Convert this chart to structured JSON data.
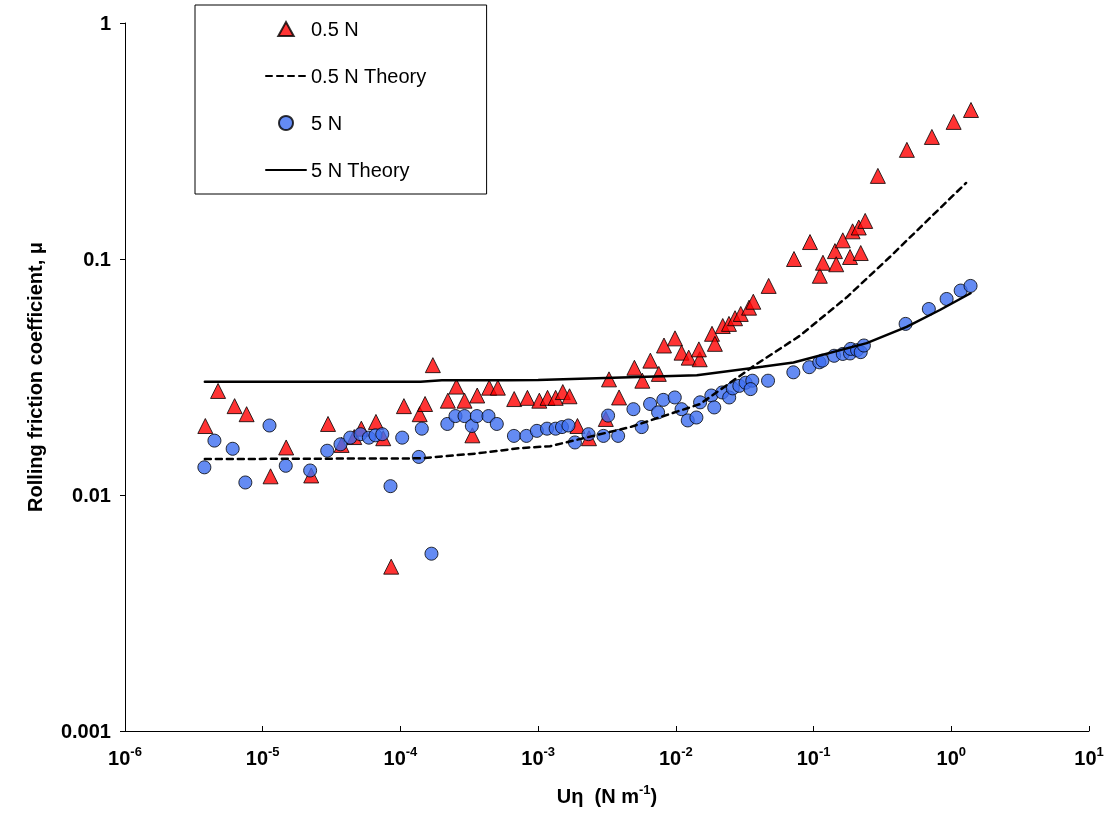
{
  "chart_data": {
    "type": "scatter",
    "xlabel": "Uη  (N m$^{-1}$)",
    "ylabel": "Rolling friction coefficient, μ",
    "log": "xy",
    "grid": false,
    "legend": "top left",
    "xlim": [
      1e-06,
      10
    ],
    "ylim": [
      0.001,
      1
    ],
    "xticks": [
      {
        "value": 1e-06,
        "label": "10$^{-6}$"
      },
      {
        "value": 1e-05,
        "label": "10$^{-5}$"
      },
      {
        "value": 0.0001,
        "label": "10$^{-4}$"
      },
      {
        "value": 0.001,
        "label": "10$^{-3}$"
      },
      {
        "value": 0.01,
        "label": "10$^{-2}$"
      },
      {
        "value": 0.1,
        "label": "10$^{-1}$"
      },
      {
        "value": 1,
        "label": "10$^{0}$"
      },
      {
        "value": 10,
        "label": "10$^{1}$"
      }
    ],
    "yticks": [
      0.001,
      0.01,
      0.1,
      1
    ],
    "series": [
      {
        "name": "0.5 N",
        "marker": "triangle",
        "color": "#ff0000",
        "x": [
          3.83e-06,
          4.74e-06,
          6.25e-06,
          7.64e-06,
          1.14e-05,
          1.48e-05,
          2.25e-05,
          2.98e-05,
          3.74e-05,
          4.62e-05,
          5.2e-05,
          6.64e-05,
          7.5e-05,
          8.57e-05,
          0.000106,
          0.000138,
          0.000151,
          0.000172,
          0.000221,
          0.000255,
          0.000292,
          0.000333,
          0.000361,
          0.000441,
          0.00051,
          0.00067,
          0.000836,
          0.00102,
          0.00117,
          0.00134,
          0.00151,
          0.00169,
          0.00193,
          0.00234,
          0.0031,
          0.00327,
          0.00387,
          0.005,
          0.00571,
          0.00653,
          0.00752,
          0.0082,
          0.00986,
          0.011,
          0.0124,
          0.0149,
          0.0147,
          0.0183,
          0.0192,
          0.0219,
          0.0243,
          0.0269,
          0.0296,
          0.034,
          0.0365,
          0.0472,
          0.0721,
          0.0942,
          0.111,
          0.117,
          0.143,
          0.146,
          0.163,
          0.184,
          0.192,
          0.213,
          0.22,
          0.237,
          0.293,
          0.476,
          0.723,
          1.04,
          1.39
        ],
        "values": [
          0.0196,
          0.0276,
          0.0238,
          0.022,
          0.012,
          0.0159,
          0.0121,
          0.02,
          0.0163,
          0.0176,
          0.0191,
          0.0204,
          0.0174,
          0.00497,
          0.0238,
          0.022,
          0.0243,
          0.0355,
          0.0251,
          0.0288,
          0.0251,
          0.0179,
          0.0264,
          0.0285,
          0.0285,
          0.0255,
          0.0258,
          0.0251,
          0.0258,
          0.0258,
          0.0273,
          0.0262,
          0.0196,
          0.0174,
          0.021,
          0.0309,
          0.0259,
          0.0346,
          0.0305,
          0.0371,
          0.0326,
          0.043,
          0.0461,
          0.0401,
          0.0382,
          0.0376,
          0.0414,
          0.0482,
          0.0437,
          0.052,
          0.0531,
          0.0561,
          0.0585,
          0.0622,
          0.0659,
          0.0769,
          0.1,
          0.118,
          0.0849,
          0.0964,
          0.108,
          0.095,
          0.12,
          0.102,
          0.131,
          0.136,
          0.106,
          0.145,
          0.225,
          0.29,
          0.329,
          0.381,
          0.428
        ]
      },
      {
        "name": "0.5 N Theory",
        "type": "line",
        "marker": "none",
        "line_style": "dashed",
        "color": "#000000",
        "x": [
          3.8e-06,
          0.00014,
          0.000359,
          0.00074,
          0.00122,
          0.00466,
          0.015,
          0.0386,
          0.0796,
          0.174,
          0.358,
          0.74,
          1.28
        ],
        "values": [
          0.0142,
          0.0143,
          0.015,
          0.0158,
          0.0161,
          0.0194,
          0.0243,
          0.0359,
          0.0473,
          0.0688,
          0.102,
          0.154,
          0.21
        ]
      },
      {
        "name": "5 N",
        "marker": "circle",
        "color": "#3d6ef0",
        "x": [
          3.77e-06,
          4.46e-06,
          6.05e-06,
          7.48e-06,
          1.12e-05,
          1.47e-05,
          2.21e-05,
          2.94e-05,
          3.67e-05,
          4.32e-05,
          5.13e-05,
          5.9e-05,
          6.59e-05,
          7.38e-05,
          8.47e-05,
          0.000103,
          0.000136,
          0.000143,
          0.000168,
          0.000219,
          0.000251,
          0.000292,
          0.00033,
          0.000359,
          0.000436,
          0.000501,
          0.000667,
          0.000822,
          0.000979,
          0.00116,
          0.00134,
          0.00149,
          0.00166,
          0.00185,
          0.00232,
          0.00298,
          0.00322,
          0.00381,
          0.00492,
          0.00565,
          0.0065,
          0.00743,
          0.00811,
          0.00982,
          0.011,
          0.0122,
          0.0141,
          0.015,
          0.0181,
          0.019,
          0.0217,
          0.0244,
          0.0259,
          0.0289,
          0.0321,
          0.0359,
          0.0349,
          0.0467,
          0.0713,
          0.0931,
          0.11,
          0.116,
          0.141,
          0.163,
          0.184,
          0.186,
          0.207,
          0.22,
          0.232,
          0.466,
          0.687,
          0.925,
          1.17,
          1.38
        ],
        "values": [
          0.0131,
          0.017,
          0.0157,
          0.0113,
          0.0197,
          0.0133,
          0.0127,
          0.0154,
          0.0164,
          0.0175,
          0.0181,
          0.0175,
          0.0179,
          0.0181,
          0.0109,
          0.0175,
          0.0145,
          0.0191,
          0.00564,
          0.02,
          0.0216,
          0.0216,
          0.0196,
          0.0216,
          0.0216,
          0.02,
          0.0178,
          0.0178,
          0.0187,
          0.0191,
          0.0191,
          0.0194,
          0.0197,
          0.0167,
          0.0181,
          0.0178,
          0.0217,
          0.0178,
          0.0231,
          0.0194,
          0.0243,
          0.0224,
          0.0253,
          0.0259,
          0.0231,
          0.0207,
          0.0213,
          0.0247,
          0.0264,
          0.0235,
          0.0272,
          0.0259,
          0.0283,
          0.029,
          0.0299,
          0.0305,
          0.0281,
          0.0305,
          0.0331,
          0.0348,
          0.0365,
          0.0371,
          0.0389,
          0.0396,
          0.0398,
          0.0416,
          0.0411,
          0.0403,
          0.043,
          0.0531,
          0.0614,
          0.0677,
          0.0735,
          0.0769
        ]
      },
      {
        "name": "5 N Theory",
        "type": "line",
        "marker": "none",
        "line_style": "solid",
        "color": "#000000",
        "x": [
          3.8e-06,
          0.00014,
          0.0002,
          0.001,
          0.0142,
          0.0715,
          0.243,
          0.474,
          0.826,
          1.38
        ],
        "values": [
          0.0302,
          0.0302,
          0.0306,
          0.0307,
          0.0322,
          0.0364,
          0.044,
          0.0516,
          0.0608,
          0.0716
        ]
      }
    ]
  }
}
